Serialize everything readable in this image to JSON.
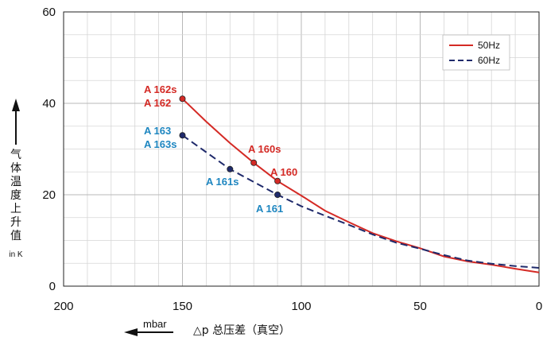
{
  "chart_data": {
    "type": "line",
    "xlim": [
      200,
      0
    ],
    "ylim": [
      0,
      60
    ],
    "x_ticks": [
      200,
      150,
      100,
      50,
      0
    ],
    "y_ticks": [
      0,
      20,
      40,
      60
    ],
    "grid": true,
    "legend_position": "top-right",
    "series": [
      {
        "name": "50Hz",
        "color": "#d42a25",
        "dash": false,
        "x": [
          150,
          140,
          130,
          120,
          110,
          100,
          90,
          80,
          70,
          60,
          50,
          40,
          30,
          20,
          10,
          0
        ],
        "y": [
          41,
          36,
          31.3,
          27,
          23,
          19.8,
          16.5,
          14,
          11.6,
          9.8,
          8.3,
          6.5,
          5.4,
          4.7,
          3.8,
          3
        ]
      },
      {
        "name": "60Hz",
        "color": "#1f2a6b",
        "dash": true,
        "x": [
          150,
          140,
          130,
          120,
          110,
          100,
          90,
          80,
          70,
          60,
          50,
          40,
          30,
          20,
          10,
          0
        ],
        "y": [
          33,
          29.3,
          25.6,
          22.8,
          20,
          17.5,
          15.4,
          13.4,
          11.3,
          9.5,
          8.2,
          6.8,
          5.6,
          4.9,
          4.4,
          4
        ]
      }
    ],
    "markers": [
      {
        "x": 150,
        "y": 41,
        "color": "#d42a25"
      },
      {
        "x": 120,
        "y": 27,
        "color": "#d42a25"
      },
      {
        "x": 110,
        "y": 23,
        "color": "#d42a25"
      },
      {
        "x": 150,
        "y": 33,
        "color": "#1f2a6b"
      },
      {
        "x": 130,
        "y": 25.6,
        "color": "#1f2a6b"
      },
      {
        "x": 110,
        "y": 20,
        "color": "#1f2a6b"
      }
    ],
    "annotations": [
      {
        "text": "A 162s",
        "color": "#d42a25"
      },
      {
        "text": "A 162",
        "color": "#d42a25"
      },
      {
        "text": "A 163",
        "color": "#1e86c0"
      },
      {
        "text": "A 163s",
        "color": "#1e86c0"
      },
      {
        "text": "A 160s",
        "color": "#d42a25"
      },
      {
        "text": "A 160",
        "color": "#d42a25"
      },
      {
        "text": "A 161s",
        "color": "#1e86c0"
      },
      {
        "text": "A 161",
        "color": "#1e86c0"
      }
    ],
    "ylabel": "气体温度上升值",
    "ylabel_unit": "in K",
    "xlabel_unit": "mbar",
    "xlabel": "△p 总压差（真空）"
  }
}
